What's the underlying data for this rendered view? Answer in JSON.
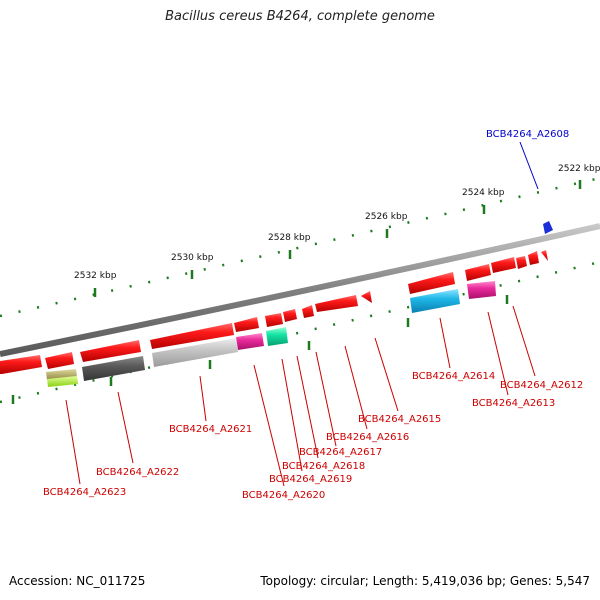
{
  "header": {
    "title": "Bacillus cereus B4264, complete genome"
  },
  "footer": {
    "accession": "Accession: NC_011725",
    "summary": "Topology: circular; Length: 5,419,036 bp; Genes: 5,547"
  },
  "ticks": [
    {
      "label": "2522 kbp"
    },
    {
      "label": "2524 kbp"
    },
    {
      "label": "2526 kbp"
    },
    {
      "label": "2528 kbp"
    },
    {
      "label": "2530 kbp"
    },
    {
      "label": "2532 kbp"
    }
  ],
  "genes": [
    {
      "name": "BCB4264_A2608",
      "color": "#0000cc",
      "highlight": true
    },
    {
      "name": "BCB4264_A2612",
      "color": "#cc0000"
    },
    {
      "name": "BCB4264_A2613",
      "color": "#cc0000"
    },
    {
      "name": "BCB4264_A2614",
      "color": "#cc0000"
    },
    {
      "name": "BCB4264_A2615",
      "color": "#cc0000"
    },
    {
      "name": "BCB4264_A2616",
      "color": "#cc0000"
    },
    {
      "name": "BCB4264_A2617",
      "color": "#cc0000"
    },
    {
      "name": "BCB4264_A2618",
      "color": "#cc0000"
    },
    {
      "name": "BCB4264_A2619",
      "color": "#cc0000"
    },
    {
      "name": "BCB4264_A2620",
      "color": "#cc0000"
    },
    {
      "name": "BCB4264_A2621",
      "color": "#cc0000"
    },
    {
      "name": "BCB4264_A2622",
      "color": "#cc0000"
    },
    {
      "name": "BCB4264_A2623",
      "color": "#cc0000"
    }
  ],
  "colors": {
    "backbone": "#8a8a8a",
    "tick_green": "#1e7a1e",
    "forward_gene": "#ee1111",
    "cog_cyan": "#1fb8e8",
    "cog_magenta": "#e8249a",
    "cog_teal": "#12e0a0",
    "cog_olive": "#b8b060",
    "cog_lime": "#b4ff2a",
    "cog_dark": "#555555",
    "cog_light": "#c4c4c4"
  }
}
